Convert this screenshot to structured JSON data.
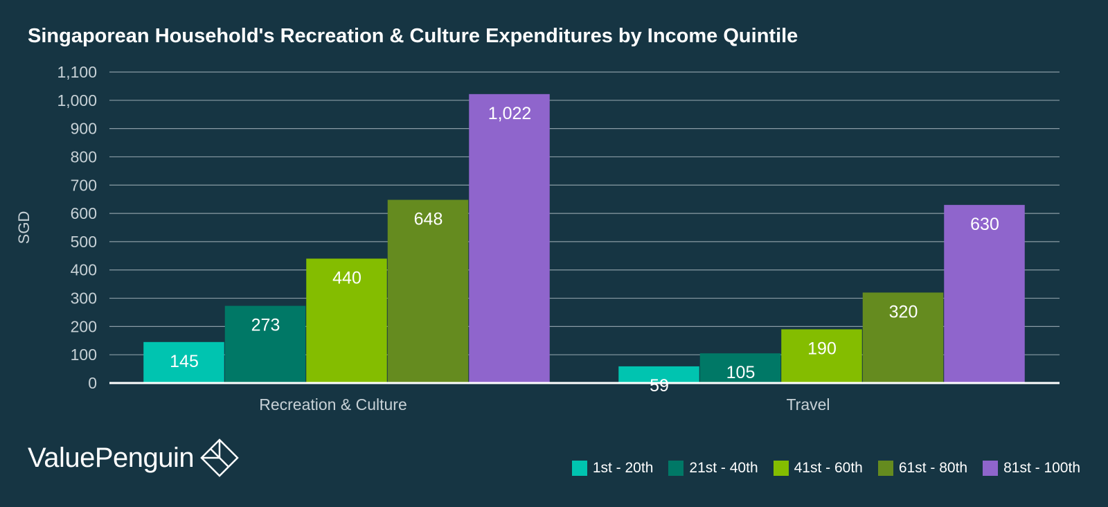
{
  "chart_data": {
    "type": "bar",
    "title": "Singaporean Household's Recreation & Culture Expenditures by Income Quintile",
    "ylabel": "SGD",
    "xlabel": "",
    "ylim": [
      0,
      1100
    ],
    "yticks": [
      0,
      100,
      200,
      300,
      400,
      500,
      600,
      700,
      800,
      900,
      1000,
      1100
    ],
    "ytick_labels": [
      "0",
      "100",
      "200",
      "300",
      "400",
      "500",
      "600",
      "700",
      "800",
      "900",
      "1,000",
      "1,100"
    ],
    "grid": true,
    "legend_position": "bottom-right",
    "categories": [
      "Recreation & Culture",
      "Travel"
    ],
    "series": [
      {
        "name": "1st - 20th",
        "color": "#00c4b0",
        "values": [
          145,
          59
        ],
        "value_labels": [
          "145",
          "59"
        ]
      },
      {
        "name": "21st - 40th",
        "color": "#007866",
        "values": [
          273,
          105
        ],
        "value_labels": [
          "273",
          "105"
        ]
      },
      {
        "name": "41st - 60th",
        "color": "#84bd00",
        "values": [
          440,
          190
        ],
        "value_labels": [
          "440",
          "190"
        ]
      },
      {
        "name": "61st - 80th",
        "color": "#658b1f",
        "values": [
          648,
          320
        ],
        "value_labels": [
          "648",
          "320"
        ]
      },
      {
        "name": "81st - 100th",
        "color": "#8f65cc",
        "values": [
          1022,
          630
        ],
        "value_labels": [
          "1,022",
          "630"
        ]
      }
    ]
  },
  "brand": {
    "name": "ValuePenguin"
  },
  "colors": {
    "background": "#163543",
    "text": "#ffffff",
    "axis_text": "#c7d1d6",
    "grid": "#8a9ca5"
  }
}
